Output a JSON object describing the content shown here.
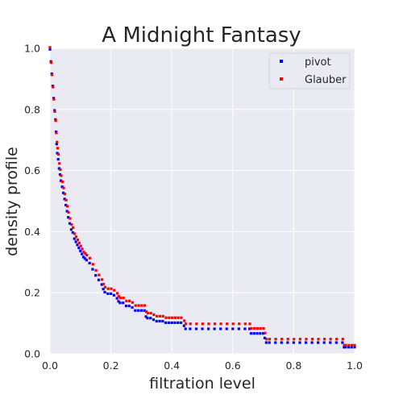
{
  "chart_data": {
    "type": "scatter",
    "title": "A Midnight Fantasy",
    "xlabel": "filtration level",
    "ylabel": "density profile",
    "xlim": [
      0.0,
      1.0
    ],
    "ylim": [
      0.0,
      1.0
    ],
    "xticks": [
      "0.0",
      "0.2",
      "0.4",
      "0.6",
      "0.8",
      "1.0"
    ],
    "yticks": [
      "0.0",
      "0.2",
      "0.4",
      "0.6",
      "0.8",
      "1.0"
    ],
    "grid": true,
    "legend_position": "top-right",
    "background_color": "#eaeaf2",
    "series": [
      {
        "name": "pivot",
        "color": "#0000ff",
        "points": [
          [
            0.0,
            1.0
          ],
          [
            0.003,
            0.96
          ],
          [
            0.006,
            0.92
          ],
          [
            0.009,
            0.88
          ],
          [
            0.012,
            0.84
          ],
          [
            0.015,
            0.8
          ],
          [
            0.018,
            0.77
          ],
          [
            0.02,
            0.73
          ],
          [
            0.022,
            0.69
          ],
          [
            0.024,
            0.66
          ],
          [
            0.027,
            0.64
          ],
          [
            0.03,
            0.61
          ],
          [
            0.033,
            0.59
          ],
          [
            0.036,
            0.57
          ],
          [
            0.04,
            0.55
          ],
          [
            0.044,
            0.53
          ],
          [
            0.048,
            0.51
          ],
          [
            0.052,
            0.49
          ],
          [
            0.056,
            0.47
          ],
          [
            0.06,
            0.45
          ],
          [
            0.065,
            0.43
          ],
          [
            0.07,
            0.41
          ],
          [
            0.075,
            0.4
          ],
          [
            0.08,
            0.38
          ],
          [
            0.085,
            0.37
          ],
          [
            0.09,
            0.36
          ],
          [
            0.095,
            0.35
          ],
          [
            0.1,
            0.34
          ],
          [
            0.105,
            0.33
          ],
          [
            0.11,
            0.32
          ],
          [
            0.115,
            0.315
          ],
          [
            0.12,
            0.31
          ],
          [
            0.13,
            0.3
          ],
          [
            0.14,
            0.28
          ],
          [
            0.15,
            0.26
          ],
          [
            0.16,
            0.245
          ],
          [
            0.17,
            0.23
          ],
          [
            0.175,
            0.215
          ],
          [
            0.18,
            0.205
          ],
          [
            0.19,
            0.2
          ],
          [
            0.2,
            0.2
          ],
          [
            0.21,
            0.195
          ],
          [
            0.22,
            0.185
          ],
          [
            0.225,
            0.175
          ],
          [
            0.23,
            0.17
          ],
          [
            0.24,
            0.17
          ],
          [
            0.25,
            0.16
          ],
          [
            0.26,
            0.16
          ],
          [
            0.27,
            0.155
          ],
          [
            0.28,
            0.145
          ],
          [
            0.29,
            0.145
          ],
          [
            0.3,
            0.145
          ],
          [
            0.31,
            0.145
          ],
          [
            0.315,
            0.125
          ],
          [
            0.32,
            0.12
          ],
          [
            0.33,
            0.12
          ],
          [
            0.34,
            0.115
          ],
          [
            0.35,
            0.11
          ],
          [
            0.36,
            0.11
          ],
          [
            0.37,
            0.11
          ],
          [
            0.38,
            0.105
          ],
          [
            0.39,
            0.105
          ],
          [
            0.4,
            0.105
          ],
          [
            0.41,
            0.105
          ],
          [
            0.42,
            0.105
          ],
          [
            0.43,
            0.105
          ],
          [
            0.44,
            0.095
          ],
          [
            0.445,
            0.085
          ],
          [
            0.46,
            0.085
          ],
          [
            0.48,
            0.085
          ],
          [
            0.5,
            0.085
          ],
          [
            0.52,
            0.085
          ],
          [
            0.54,
            0.085
          ],
          [
            0.56,
            0.085
          ],
          [
            0.58,
            0.085
          ],
          [
            0.6,
            0.085
          ],
          [
            0.62,
            0.085
          ],
          [
            0.64,
            0.085
          ],
          [
            0.655,
            0.085
          ],
          [
            0.66,
            0.07
          ],
          [
            0.67,
            0.07
          ],
          [
            0.68,
            0.07
          ],
          [
            0.69,
            0.07
          ],
          [
            0.7,
            0.07
          ],
          [
            0.705,
            0.055
          ],
          [
            0.71,
            0.04
          ],
          [
            0.72,
            0.04
          ],
          [
            0.74,
            0.04
          ],
          [
            0.76,
            0.04
          ],
          [
            0.78,
            0.04
          ],
          [
            0.8,
            0.04
          ],
          [
            0.82,
            0.04
          ],
          [
            0.84,
            0.04
          ],
          [
            0.86,
            0.04
          ],
          [
            0.88,
            0.04
          ],
          [
            0.9,
            0.04
          ],
          [
            0.92,
            0.04
          ],
          [
            0.94,
            0.04
          ],
          [
            0.96,
            0.04
          ],
          [
            0.965,
            0.025
          ],
          [
            0.97,
            0.025
          ],
          [
            0.98,
            0.025
          ],
          [
            0.99,
            0.025
          ],
          [
            1.0,
            0.025
          ]
        ]
      },
      {
        "name": "Glauber",
        "color": "#ff0000",
        "points": [
          [
            0.0,
            1.0
          ],
          [
            0.004,
            0.95
          ],
          [
            0.007,
            0.91
          ],
          [
            0.01,
            0.87
          ],
          [
            0.013,
            0.83
          ],
          [
            0.016,
            0.79
          ],
          [
            0.019,
            0.76
          ],
          [
            0.021,
            0.72
          ],
          [
            0.023,
            0.69
          ],
          [
            0.025,
            0.67
          ],
          [
            0.028,
            0.65
          ],
          [
            0.031,
            0.62
          ],
          [
            0.034,
            0.6
          ],
          [
            0.037,
            0.58
          ],
          [
            0.041,
            0.56
          ],
          [
            0.045,
            0.54
          ],
          [
            0.049,
            0.52
          ],
          [
            0.053,
            0.5
          ],
          [
            0.057,
            0.48
          ],
          [
            0.061,
            0.46
          ],
          [
            0.066,
            0.44
          ],
          [
            0.071,
            0.42
          ],
          [
            0.076,
            0.41
          ],
          [
            0.081,
            0.39
          ],
          [
            0.086,
            0.38
          ],
          [
            0.091,
            0.37
          ],
          [
            0.096,
            0.36
          ],
          [
            0.101,
            0.35
          ],
          [
            0.106,
            0.34
          ],
          [
            0.111,
            0.33
          ],
          [
            0.116,
            0.325
          ],
          [
            0.121,
            0.32
          ],
          [
            0.131,
            0.31
          ],
          [
            0.141,
            0.29
          ],
          [
            0.151,
            0.27
          ],
          [
            0.161,
            0.255
          ],
          [
            0.171,
            0.24
          ],
          [
            0.176,
            0.225
          ],
          [
            0.181,
            0.215
          ],
          [
            0.191,
            0.21
          ],
          [
            0.201,
            0.21
          ],
          [
            0.211,
            0.205
          ],
          [
            0.221,
            0.195
          ],
          [
            0.226,
            0.185
          ],
          [
            0.231,
            0.18
          ],
          [
            0.241,
            0.18
          ],
          [
            0.251,
            0.17
          ],
          [
            0.261,
            0.17
          ],
          [
            0.271,
            0.165
          ],
          [
            0.281,
            0.155
          ],
          [
            0.291,
            0.155
          ],
          [
            0.301,
            0.155
          ],
          [
            0.311,
            0.155
          ],
          [
            0.316,
            0.135
          ],
          [
            0.321,
            0.13
          ],
          [
            0.331,
            0.13
          ],
          [
            0.341,
            0.125
          ],
          [
            0.351,
            0.12
          ],
          [
            0.361,
            0.12
          ],
          [
            0.371,
            0.12
          ],
          [
            0.381,
            0.115
          ],
          [
            0.391,
            0.115
          ],
          [
            0.401,
            0.115
          ],
          [
            0.411,
            0.115
          ],
          [
            0.421,
            0.115
          ],
          [
            0.431,
            0.115
          ],
          [
            0.441,
            0.105
          ],
          [
            0.446,
            0.095
          ],
          [
            0.461,
            0.095
          ],
          [
            0.481,
            0.095
          ],
          [
            0.501,
            0.095
          ],
          [
            0.521,
            0.095
          ],
          [
            0.541,
            0.095
          ],
          [
            0.561,
            0.095
          ],
          [
            0.581,
            0.095
          ],
          [
            0.601,
            0.095
          ],
          [
            0.621,
            0.095
          ],
          [
            0.641,
            0.095
          ],
          [
            0.656,
            0.095
          ],
          [
            0.661,
            0.08
          ],
          [
            0.671,
            0.08
          ],
          [
            0.681,
            0.08
          ],
          [
            0.691,
            0.08
          ],
          [
            0.701,
            0.08
          ],
          [
            0.706,
            0.065
          ],
          [
            0.711,
            0.045
          ],
          [
            0.721,
            0.045
          ],
          [
            0.741,
            0.045
          ],
          [
            0.761,
            0.045
          ],
          [
            0.781,
            0.045
          ],
          [
            0.801,
            0.045
          ],
          [
            0.821,
            0.045
          ],
          [
            0.841,
            0.045
          ],
          [
            0.861,
            0.045
          ],
          [
            0.881,
            0.045
          ],
          [
            0.901,
            0.045
          ],
          [
            0.921,
            0.045
          ],
          [
            0.941,
            0.045
          ],
          [
            0.961,
            0.045
          ],
          [
            0.966,
            0.025
          ],
          [
            0.971,
            0.025
          ],
          [
            0.981,
            0.025
          ],
          [
            0.991,
            0.025
          ],
          [
            1.0,
            0.025
          ]
        ]
      }
    ]
  }
}
